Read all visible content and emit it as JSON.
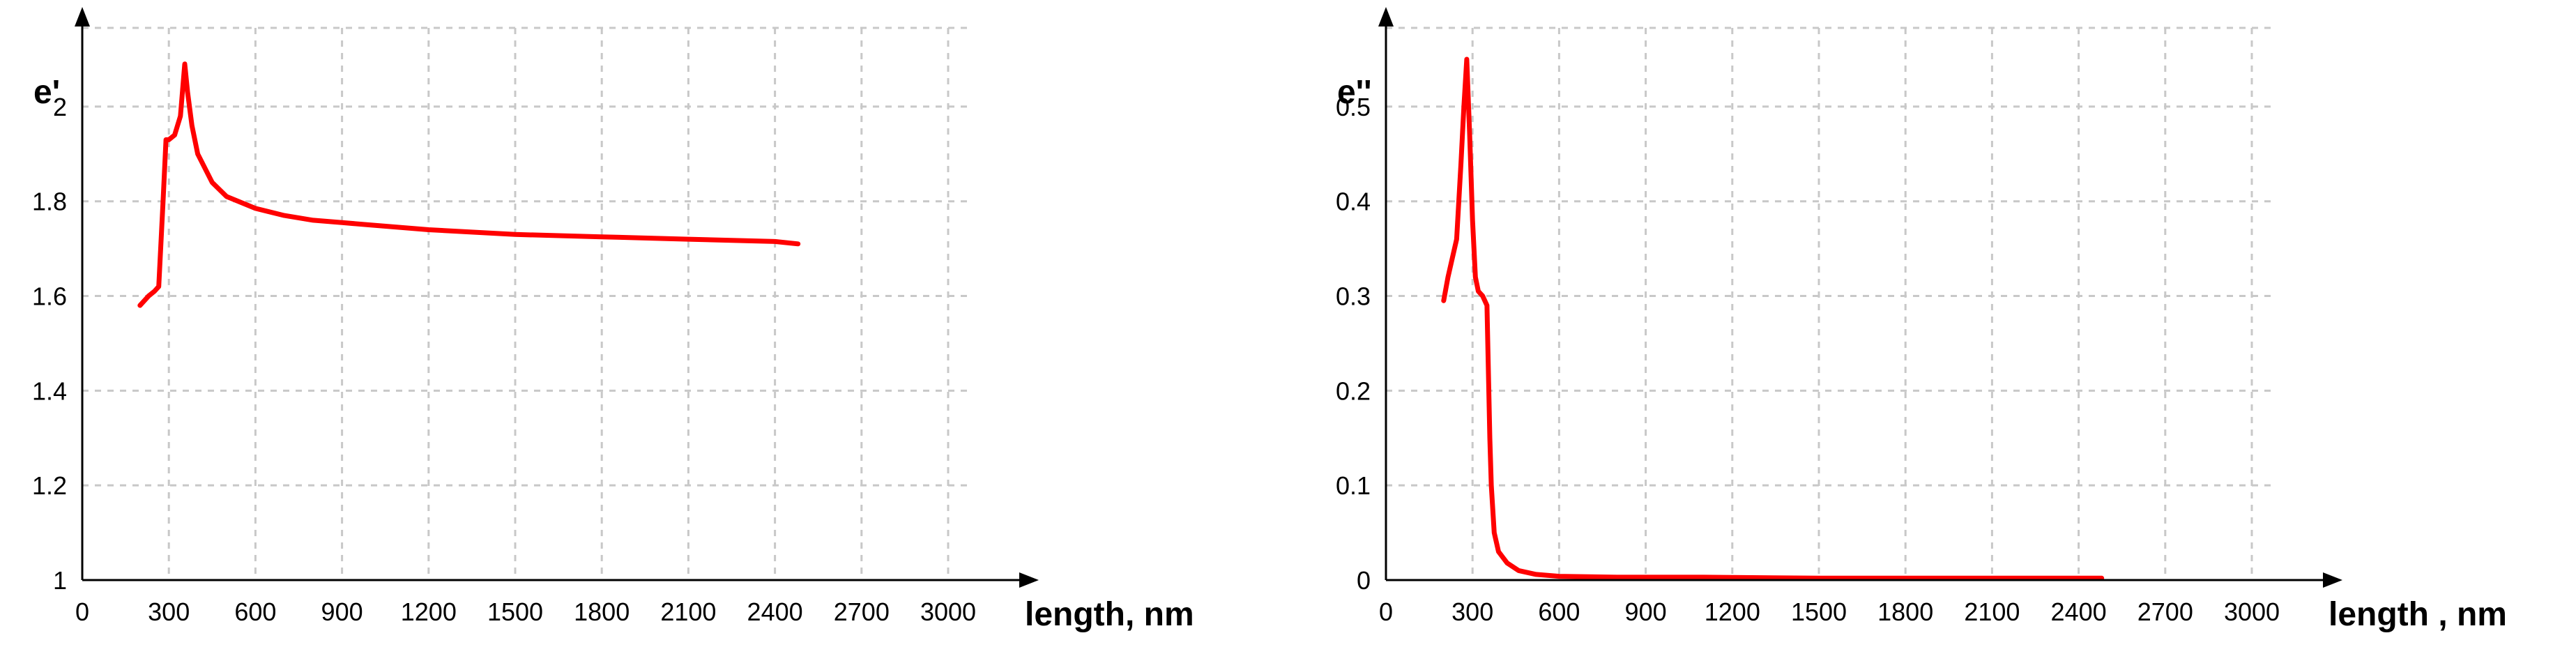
{
  "chart_data": [
    {
      "type": "line",
      "title": "",
      "xlabel": "length, nm",
      "ylabel": "e'",
      "xlim": [
        0,
        3000
      ],
      "ylim": [
        1,
        2.1
      ],
      "xticks": [
        "0",
        "300",
        "600",
        "900",
        "1200",
        "1500",
        "1800",
        "2100",
        "2400",
        "2700",
        "3000"
      ],
      "yticks": [
        "1",
        "1.2",
        "1.4",
        "1.6",
        "1.8",
        "2"
      ],
      "grid": true,
      "series_color": "#ff0000",
      "series": [
        {
          "x": [
            200,
            230,
            250,
            265,
            280,
            290,
            300,
            320,
            340,
            355,
            365,
            380,
            400,
            450,
            500,
            600,
            700,
            800,
            900,
            1000,
            1200,
            1500,
            1800,
            2100,
            2400,
            2480
          ],
          "y": [
            1.58,
            1.6,
            1.61,
            1.62,
            1.8,
            1.93,
            1.93,
            1.94,
            1.98,
            2.09,
            2.03,
            1.96,
            1.9,
            1.84,
            1.81,
            1.785,
            1.77,
            1.76,
            1.755,
            1.75,
            1.74,
            1.73,
            1.725,
            1.72,
            1.715,
            1.71
          ]
        }
      ]
    },
    {
      "type": "line",
      "title": "",
      "xlabel": "length , nm",
      "ylabel": "e''",
      "xlim": [
        0,
        3000
      ],
      "ylim": [
        0,
        0.55
      ],
      "xticks": [
        "0",
        "300",
        "600",
        "900",
        "1200",
        "1500",
        "1800",
        "2100",
        "2400",
        "2700",
        "3000"
      ],
      "yticks": [
        "0",
        "0.1",
        "0.2",
        "0.3",
        "0.4",
        "0.5"
      ],
      "grid": true,
      "series_color": "#ff0000",
      "series": [
        {
          "x": [
            200,
            215,
            230,
            245,
            260,
            270,
            280,
            290,
            300,
            310,
            320,
            335,
            350,
            360,
            365,
            375,
            390,
            420,
            460,
            520,
            600,
            800,
            1100,
            1500,
            2000,
            2480
          ],
          "y": [
            0.295,
            0.32,
            0.34,
            0.36,
            0.44,
            0.5,
            0.55,
            0.47,
            0.38,
            0.32,
            0.305,
            0.3,
            0.29,
            0.15,
            0.1,
            0.05,
            0.03,
            0.018,
            0.01,
            0.006,
            0.004,
            0.003,
            0.003,
            0.002,
            0.002,
            0.002
          ]
        }
      ]
    }
  ]
}
